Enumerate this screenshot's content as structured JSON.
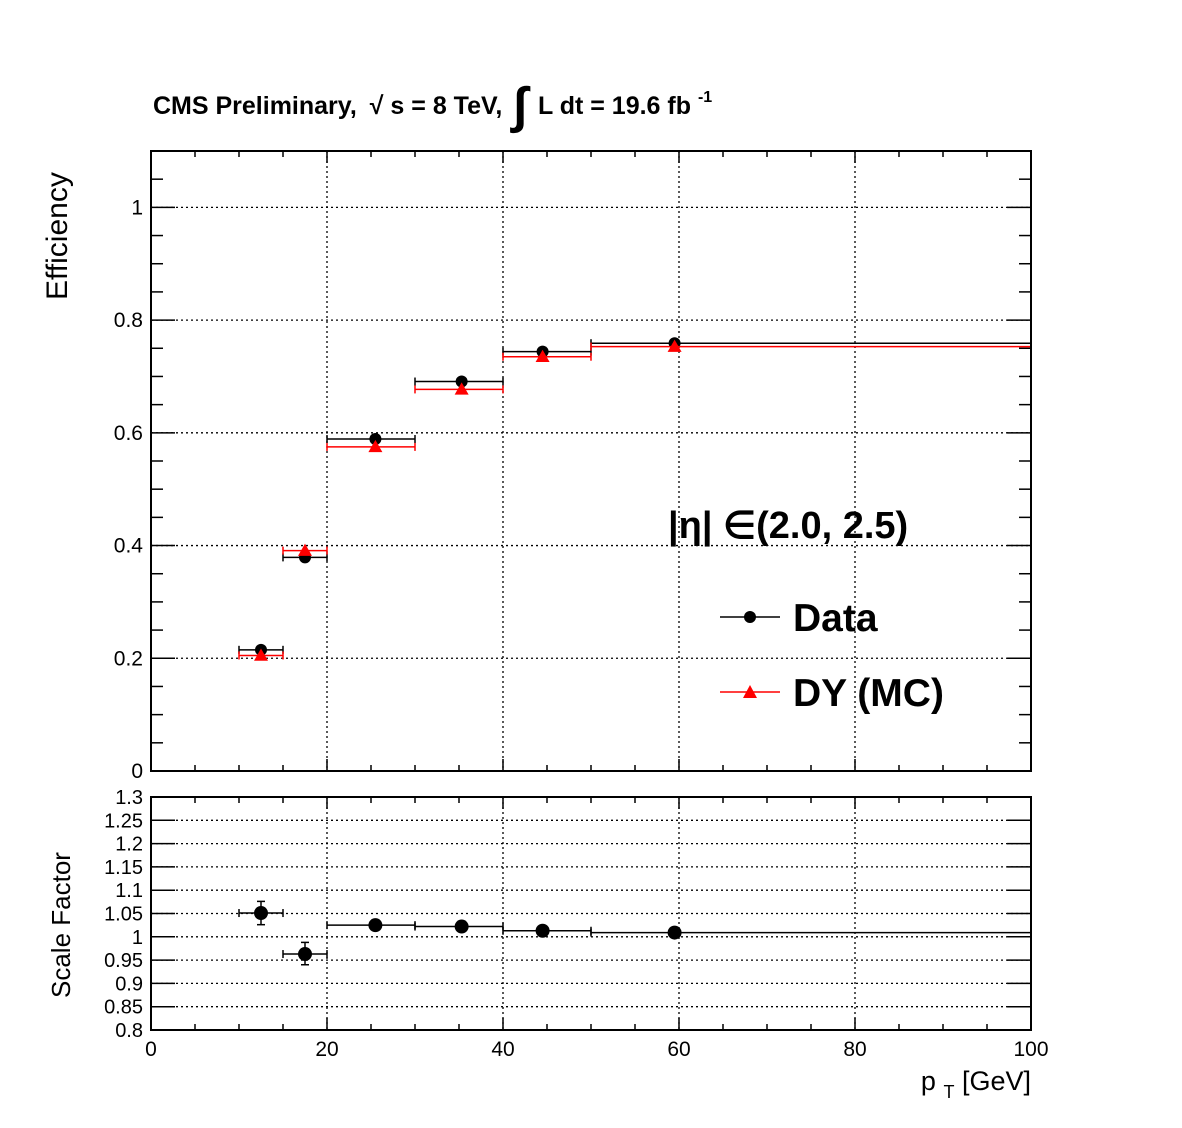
{
  "header": {
    "title_prefix": "CMS Preliminary,",
    "sqrt_symbol": "√",
    "energy_var": "s",
    "energy_rest": " = 8 TeV,",
    "integral_symbol": "∫",
    "lumi_text": "L dt = 19.6 fb",
    "lumi_exp": "-1"
  },
  "eta_label": "|η| ∈(2.0, 2.5)",
  "legend": {
    "position": "right-middle",
    "items": [
      {
        "label": "Data",
        "color": "#000000",
        "marker": "circle"
      },
      {
        "label": "DY (MC)",
        "color": "#ff0000",
        "marker": "triangle"
      }
    ]
  },
  "chart_data": [
    {
      "type": "scatter",
      "panel": "top",
      "ylabel": "Efficiency",
      "xlim": [
        0,
        100
      ],
      "ylim": [
        0,
        1.1
      ],
      "grid": true,
      "x_ticks": [
        0,
        20,
        40,
        60,
        80,
        100
      ],
      "y_ticks": [
        0,
        0.2,
        0.4,
        0.6,
        0.8,
        1
      ],
      "y_tick_labels": [
        "0",
        "0.2",
        "0.4",
        "0.6",
        "0.8",
        "1"
      ],
      "series": [
        {
          "name": "Data",
          "color": "#000000",
          "marker": "circle",
          "points": [
            {
              "x": 12.5,
              "xlo": 10,
              "xhi": 15,
              "y": 0.215
            },
            {
              "x": 17.5,
              "xlo": 15,
              "xhi": 20,
              "y": 0.379
            },
            {
              "x": 25.5,
              "xlo": 20,
              "xhi": 30,
              "y": 0.589
            },
            {
              "x": 35.3,
              "xlo": 30,
              "xhi": 40,
              "y": 0.691
            },
            {
              "x": 44.5,
              "xlo": 40,
              "xhi": 50,
              "y": 0.744
            },
            {
              "x": 59.5,
              "xlo": 50,
              "xhi": 100,
              "y": 0.759
            }
          ]
        },
        {
          "name": "DY (MC)",
          "color": "#ff0000",
          "marker": "triangle",
          "points": [
            {
              "x": 12.5,
              "xlo": 10,
              "xhi": 15,
              "y": 0.205
            },
            {
              "x": 17.5,
              "xlo": 15,
              "xhi": 20,
              "y": 0.391
            },
            {
              "x": 25.5,
              "xlo": 20,
              "xhi": 30,
              "y": 0.575
            },
            {
              "x": 35.3,
              "xlo": 30,
              "xhi": 40,
              "y": 0.677
            },
            {
              "x": 44.5,
              "xlo": 40,
              "xhi": 50,
              "y": 0.735
            },
            {
              "x": 59.5,
              "xlo": 50,
              "xhi": 100,
              "y": 0.753
            }
          ]
        }
      ]
    },
    {
      "type": "scatter",
      "panel": "bottom",
      "ylabel": "Scale Factor",
      "xlabel_main": "p",
      "xlabel_sub": "T",
      "xlabel_unit": " [GeV]",
      "xlim": [
        0,
        100
      ],
      "ylim": [
        0.8,
        1.3
      ],
      "grid": true,
      "x_ticks": [
        0,
        20,
        40,
        60,
        80,
        100
      ],
      "x_tick_labels": [
        "0",
        "20",
        "40",
        "60",
        "80",
        "100"
      ],
      "y_ticks": [
        0.8,
        0.85,
        0.9,
        0.95,
        1,
        1.05,
        1.1,
        1.15,
        1.2,
        1.25,
        1.3
      ],
      "y_tick_labels": [
        "0.8",
        "0.85",
        "0.9",
        "0.95",
        "1",
        "1.05",
        "1.1",
        "1.15",
        "1.2",
        "1.25",
        "1.3"
      ],
      "series": [
        {
          "name": "Scale Factor",
          "color": "#000000",
          "marker": "circle",
          "points": [
            {
              "x": 12.5,
              "xlo": 10,
              "xhi": 15,
              "y": 1.051,
              "ylo": 1.026,
              "yhi": 1.076
            },
            {
              "x": 17.5,
              "xlo": 15,
              "xhi": 20,
              "y": 0.963,
              "ylo": 0.94,
              "yhi": 0.988
            },
            {
              "x": 25.5,
              "xlo": 20,
              "xhi": 30,
              "y": 1.025,
              "ylo": 1.02,
              "yhi": 1.03
            },
            {
              "x": 35.3,
              "xlo": 30,
              "xhi": 40,
              "y": 1.022,
              "ylo": 1.017,
              "yhi": 1.027
            },
            {
              "x": 44.5,
              "xlo": 40,
              "xhi": 50,
              "y": 1.013,
              "ylo": 1.009,
              "yhi": 1.017
            },
            {
              "x": 59.5,
              "xlo": 50,
              "xhi": 100,
              "y": 1.009,
              "ylo": 1.005,
              "yhi": 1.013
            }
          ]
        }
      ]
    }
  ]
}
